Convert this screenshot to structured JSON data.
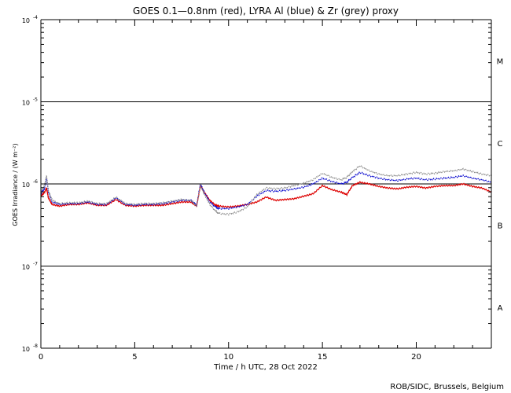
{
  "chart_data": {
    "type": "line",
    "title": "GOES 0.1—0.8nm (red), LYRA Al (blue) & Zr (grey) proxy",
    "xlabel": "Time / h UTC, 28 Oct 2022",
    "ylabel": "GOES Irradiance / (W m⁻²)",
    "xlim": [
      0,
      24
    ],
    "ylim_log10": [
      -8,
      -4
    ],
    "x_ticks": [
      0,
      5,
      10,
      15,
      20
    ],
    "x_tick_labels": [
      "0",
      "5",
      "10",
      "15",
      "20"
    ],
    "y_ticks_log10": [
      -4,
      -5,
      -6,
      -7,
      -8
    ],
    "y_tick_labels": [
      {
        "base": "10",
        "exp": "-4"
      },
      {
        "base": "10",
        "exp": "-5"
      },
      {
        "base": "10",
        "exp": "-6"
      },
      {
        "base": "10",
        "exp": "-7"
      },
      {
        "base": "10",
        "exp": "-8"
      }
    ],
    "flare_class_lines_log10": [
      -5,
      -6,
      -7
    ],
    "flare_classes": [
      {
        "label": "M",
        "center_log10": -4.5
      },
      {
        "label": "C",
        "center_log10": -5.5
      },
      {
        "label": "B",
        "center_log10": -6.5
      },
      {
        "label": "A",
        "center_log10": -7.5
      }
    ],
    "x": [
      0.0,
      0.2,
      0.3,
      0.4,
      0.6,
      1.0,
      1.5,
      2.0,
      2.5,
      3.0,
      3.5,
      4.0,
      4.5,
      5.0,
      5.5,
      6.0,
      6.5,
      7.0,
      7.5,
      8.0,
      8.3,
      8.5,
      8.7,
      9.0,
      9.3,
      9.5,
      10.0,
      10.5,
      11.0,
      11.5,
      12.0,
      12.5,
      13.0,
      13.5,
      14.0,
      14.5,
      15.0,
      15.5,
      16.0,
      16.3,
      16.6,
      17.0,
      17.5,
      18.0,
      18.5,
      19.0,
      19.5,
      20.0,
      20.5,
      21.0,
      21.5,
      22.0,
      22.5,
      23.0,
      23.5,
      24.0
    ],
    "series": [
      {
        "name": "GOES 0.1-0.8nm",
        "color": "#dd0000",
        "values_log10": [
          -6.15,
          -6.1,
          -6.05,
          -6.17,
          -6.25,
          -6.27,
          -6.25,
          -6.25,
          -6.23,
          -6.26,
          -6.26,
          -6.19,
          -6.26,
          -6.27,
          -6.26,
          -6.26,
          -6.26,
          -6.24,
          -6.22,
          -6.22,
          -6.27,
          -6.02,
          -6.1,
          -6.2,
          -6.26,
          -6.27,
          -6.28,
          -6.27,
          -6.25,
          -6.22,
          -6.16,
          -6.2,
          -6.19,
          -6.18,
          -6.15,
          -6.12,
          -6.02,
          -6.07,
          -6.1,
          -6.13,
          -6.02,
          -5.98,
          -6.0,
          -6.03,
          -6.05,
          -6.06,
          -6.04,
          -6.03,
          -6.05,
          -6.03,
          -6.02,
          -6.02,
          -6.0,
          -6.03,
          -6.05,
          -6.1
        ]
      },
      {
        "name": "LYRA Al proxy",
        "color": "#0000cc",
        "values_log10": [
          -6.12,
          -6.05,
          -5.92,
          -6.1,
          -6.22,
          -6.25,
          -6.24,
          -6.24,
          -6.22,
          -6.25,
          -6.25,
          -6.17,
          -6.25,
          -6.26,
          -6.25,
          -6.25,
          -6.24,
          -6.22,
          -6.2,
          -6.2,
          -6.26,
          -6.0,
          -6.1,
          -6.22,
          -6.28,
          -6.3,
          -6.3,
          -6.28,
          -6.25,
          -6.15,
          -6.08,
          -6.09,
          -6.08,
          -6.06,
          -6.04,
          -6.0,
          -5.93,
          -5.97,
          -6.0,
          -5.98,
          -5.92,
          -5.86,
          -5.9,
          -5.93,
          -5.95,
          -5.96,
          -5.94,
          -5.93,
          -5.95,
          -5.94,
          -5.93,
          -5.92,
          -5.9,
          -5.93,
          -5.95,
          -5.98
        ]
      },
      {
        "name": "LYRA Zr proxy",
        "color": "#8c8c8c",
        "values_log10": [
          -6.1,
          -6.02,
          -5.9,
          -6.08,
          -6.2,
          -6.24,
          -6.23,
          -6.23,
          -6.21,
          -6.24,
          -6.24,
          -6.16,
          -6.24,
          -6.25,
          -6.24,
          -6.24,
          -6.23,
          -6.21,
          -6.19,
          -6.2,
          -6.27,
          -6.02,
          -6.12,
          -6.25,
          -6.33,
          -6.36,
          -6.37,
          -6.34,
          -6.28,
          -6.13,
          -6.05,
          -6.06,
          -6.05,
          -6.02,
          -5.99,
          -5.95,
          -5.87,
          -5.92,
          -5.95,
          -5.92,
          -5.85,
          -5.78,
          -5.84,
          -5.88,
          -5.9,
          -5.9,
          -5.88,
          -5.86,
          -5.88,
          -5.87,
          -5.85,
          -5.84,
          -5.82,
          -5.85,
          -5.88,
          -5.9
        ]
      }
    ],
    "credit": "ROB/SIDC, Brussels, Belgium"
  }
}
